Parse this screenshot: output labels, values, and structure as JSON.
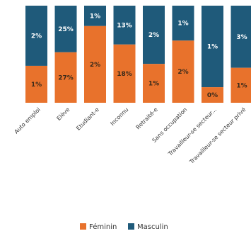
{
  "chart_data": {
    "type": "bar",
    "stacked": true,
    "categories": [
      "Auto emploi",
      "Elève",
      "Etudiant-e",
      "Inconnu",
      "Retraité-e",
      "Sans occupation",
      "Travailleur-se secteur...",
      "Travailleur-se secteur privé"
    ],
    "series": [
      {
        "name": "Féminin",
        "color": "#e8722c",
        "values": [
          1,
          27,
          2,
          18,
          1,
          2,
          0,
          1
        ],
        "display_share": [
          0.38,
          0.52,
          0.79,
          0.6,
          0.4,
          0.64,
          0.16,
          0.36
        ],
        "labels": [
          "1%",
          "27%",
          "2%",
          "18%",
          "1%",
          "2%",
          "0%",
          "1%"
        ]
      },
      {
        "name": "Masculin",
        "color": "#1f5a7a",
        "values": [
          2,
          25,
          1,
          13,
          2,
          1,
          1,
          3
        ],
        "labels": [
          "2%",
          "25%",
          "1%",
          "13%",
          "2%",
          "1%",
          "1%",
          "3%"
        ]
      }
    ],
    "legend": {
      "position": "bottom"
    },
    "grid": false,
    "title": "",
    "xlabel": "",
    "ylabel": ""
  }
}
